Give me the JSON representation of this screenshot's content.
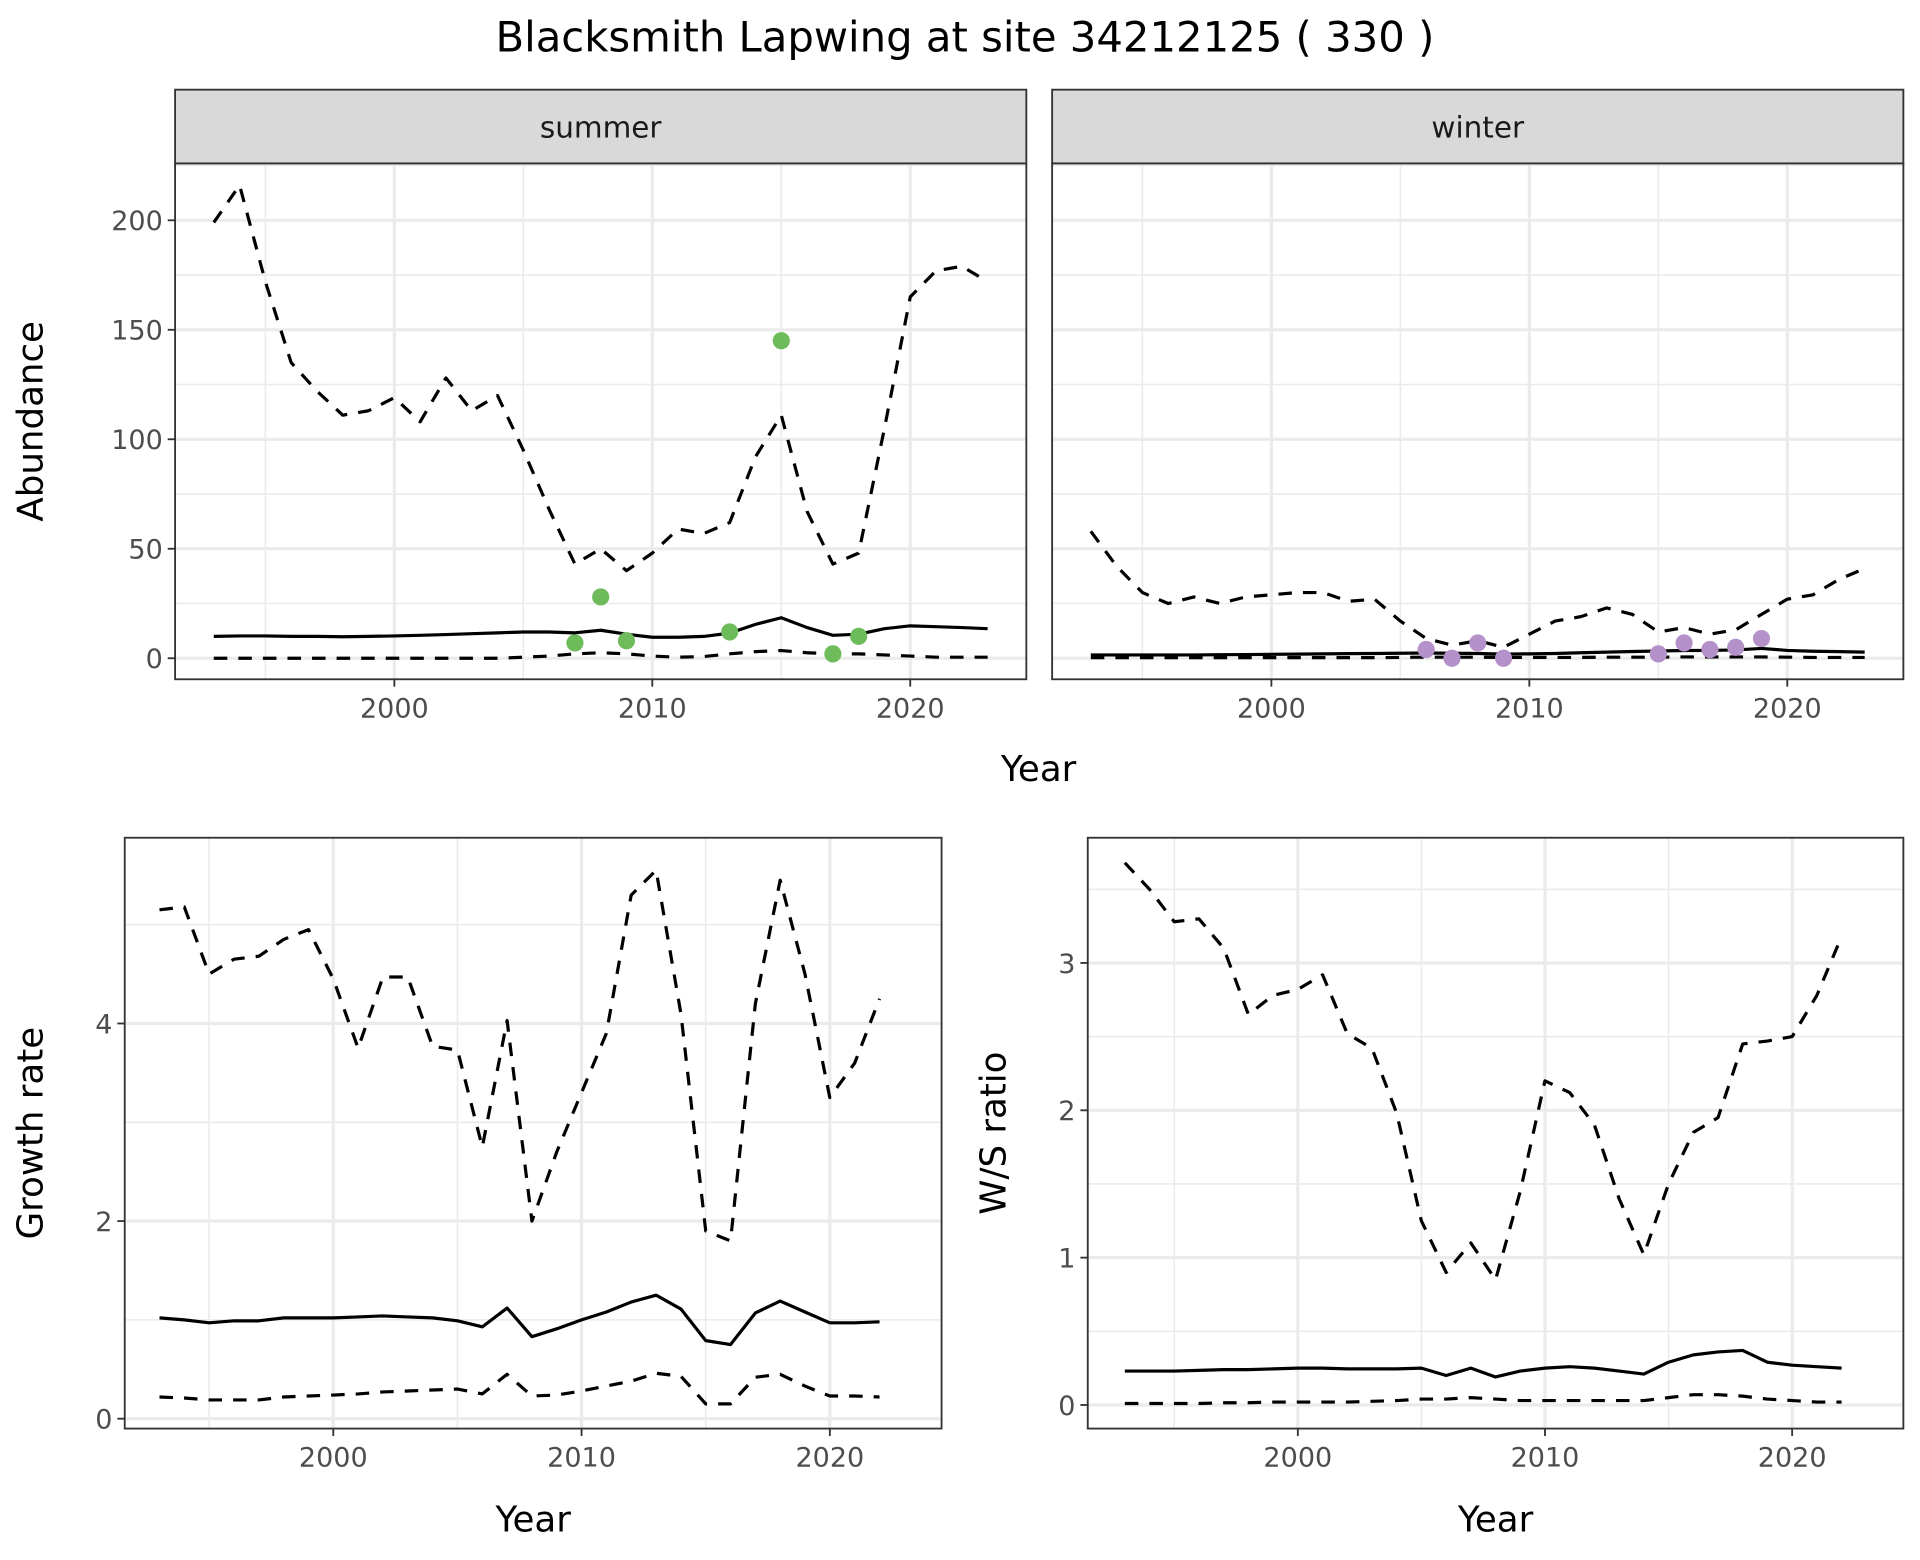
{
  "title": "Blacksmith Lapwing at site 34212125 ( 330 )",
  "colors": {
    "summer_points": "#6DBB5A",
    "winter_points": "#B491C8",
    "lines": "#000000",
    "strip_bg": "#D9D9D9",
    "grid": "#EBEBEB"
  },
  "chart_data": [
    {
      "type": "line",
      "facet": "summer",
      "xlabel": "Year",
      "ylabel": "Abundance",
      "xlim": [
        1991.5,
        2024.5
      ],
      "ylim": [
        -9.6,
        226
      ],
      "xticks": [
        2000,
        2010,
        2020
      ],
      "yticks": [
        0,
        50,
        100,
        150,
        200
      ],
      "grid": true,
      "x": [
        1993,
        1994,
        1995,
        1996,
        1997,
        1998,
        1999,
        2000,
        2001,
        2002,
        2003,
        2004,
        2005,
        2006,
        2007,
        2008,
        2009,
        2010,
        2011,
        2012,
        2013,
        2014,
        2015,
        2016,
        2017,
        2018,
        2019,
        2020,
        2021,
        2022,
        2023
      ],
      "series": [
        {
          "style": "dashed",
          "values": [
            199,
            216,
            172,
            135,
            122,
            111,
            113,
            119,
            108,
            128,
            113,
            120,
            95,
            68,
            43,
            50,
            40,
            48,
            59,
            57,
            62,
            92,
            111,
            67,
            43,
            48,
            105,
            165,
            177,
            179,
            172
          ]
        },
        {
          "style": "solid",
          "values": [
            10,
            10.2,
            10.2,
            10,
            10,
            9.8,
            10,
            10.2,
            10.5,
            10.8,
            11.2,
            11.6,
            12,
            12,
            11.6,
            12.8,
            11,
            9.6,
            9.6,
            10,
            11.5,
            15.5,
            18.5,
            14,
            10.5,
            11,
            13.5,
            14.8,
            14.4,
            14,
            13.5
          ]
        },
        {
          "style": "dashed",
          "values": [
            0,
            0,
            0,
            0,
            0,
            0,
            0,
            0,
            0,
            0,
            0,
            0,
            0.5,
            1,
            2,
            2.5,
            2,
            1,
            0.5,
            0.8,
            2,
            3,
            3.5,
            2.5,
            2,
            2,
            1.5,
            1,
            0.5,
            0.5,
            0.5
          ]
        }
      ],
      "points": {
        "x": [
          2007,
          2008,
          2009,
          2013,
          2015,
          2017,
          2018
        ],
        "y": [
          7,
          28,
          8,
          12,
          145,
          2,
          10
        ]
      }
    },
    {
      "type": "line",
      "facet": "winter",
      "xlabel": "Year",
      "ylabel": "Abundance",
      "xlim": [
        1991.5,
        2024.5
      ],
      "ylim": [
        -9.6,
        226
      ],
      "xticks": [
        2000,
        2010,
        2020
      ],
      "yticks": [
        0,
        50,
        100,
        150,
        200
      ],
      "grid": true,
      "x": [
        1993,
        1994,
        1995,
        1996,
        1997,
        1998,
        1999,
        2000,
        2001,
        2002,
        2003,
        2004,
        2005,
        2006,
        2007,
        2008,
        2009,
        2010,
        2011,
        2012,
        2013,
        2014,
        2015,
        2016,
        2017,
        2018,
        2019,
        2020,
        2021,
        2022,
        2023
      ],
      "series": [
        {
          "style": "dashed",
          "values": [
            58,
            42,
            30,
            25,
            28,
            25,
            28,
            29,
            30,
            30,
            26,
            27,
            17,
            9,
            6,
            8,
            5,
            11,
            17,
            19,
            23,
            20,
            12,
            14,
            11,
            13,
            20,
            27,
            29,
            36,
            41
          ]
        },
        {
          "style": "solid",
          "values": [
            1.5,
            1.5,
            1.5,
            1.5,
            1.5,
            1.6,
            1.7,
            1.8,
            1.9,
            2,
            2.1,
            2.2,
            2.3,
            2.4,
            2.3,
            2.2,
            1.9,
            2,
            2.2,
            2.5,
            2.8,
            3.1,
            3.3,
            3.5,
            3.6,
            3.8,
            4.5,
            3.6,
            3.2,
            3,
            2.8
          ]
        },
        {
          "style": "dashed",
          "values": [
            0.3,
            0.3,
            0.3,
            0.3,
            0.3,
            0.3,
            0.3,
            0.3,
            0.3,
            0.3,
            0.3,
            0.3,
            0.4,
            0.5,
            0.5,
            0.5,
            0.4,
            0.4,
            0.4,
            0.4,
            0.5,
            0.5,
            0.5,
            0.6,
            0.6,
            0.6,
            0.6,
            0.5,
            0.4,
            0.4,
            0.4
          ]
        }
      ],
      "points": {
        "x": [
          2006,
          2007,
          2008,
          2009,
          2015,
          2016,
          2017,
          2018,
          2019
        ],
        "y": [
          4,
          0,
          7,
          0,
          2,
          7,
          4,
          5,
          9
        ]
      }
    },
    {
      "type": "line",
      "xlabel": "Year",
      "ylabel": "Growth rate",
      "xlim": [
        1991.6,
        2024.5
      ],
      "ylim": [
        -0.1,
        5.88
      ],
      "xticks": [
        2000,
        2010,
        2020
      ],
      "yticks": [
        0,
        2,
        4
      ],
      "grid": true,
      "x": [
        1993,
        1994,
        1995,
        1996,
        1997,
        1998,
        1999,
        2000,
        2001,
        2002,
        2003,
        2004,
        2005,
        2006,
        2007,
        2008,
        2009,
        2010,
        2011,
        2012,
        2013,
        2014,
        2015,
        2016,
        2017,
        2018,
        2019,
        2020,
        2021,
        2022
      ],
      "series": [
        {
          "style": "dashed",
          "values": [
            5.15,
            5.18,
            4.5,
            4.65,
            4.68,
            4.85,
            4.95,
            4.45,
            3.75,
            4.47,
            4.47,
            3.77,
            3.73,
            2.75,
            4.03,
            2.0,
            2.7,
            3.3,
            3.9,
            5.3,
            5.55,
            4.1,
            1.9,
            1.8,
            4.2,
            5.45,
            4.5,
            3.25,
            3.6,
            4.25
          ]
        },
        {
          "style": "solid",
          "values": [
            1.02,
            1.0,
            0.97,
            0.99,
            0.99,
            1.02,
            1.02,
            1.02,
            1.03,
            1.04,
            1.03,
            1.02,
            0.99,
            0.93,
            1.12,
            0.83,
            0.91,
            1.0,
            1.08,
            1.18,
            1.25,
            1.11,
            0.79,
            0.75,
            1.07,
            1.19,
            1.08,
            0.97,
            0.97,
            0.98
          ]
        },
        {
          "style": "dashed",
          "values": [
            0.22,
            0.21,
            0.19,
            0.19,
            0.19,
            0.22,
            0.23,
            0.24,
            0.25,
            0.27,
            0.28,
            0.29,
            0.3,
            0.25,
            0.45,
            0.23,
            0.24,
            0.28,
            0.33,
            0.38,
            0.46,
            0.43,
            0.15,
            0.15,
            0.42,
            0.45,
            0.33,
            0.23,
            0.23,
            0.22
          ]
        }
      ]
    },
    {
      "type": "line",
      "xlabel": "Year",
      "ylabel": "W/S ratio",
      "xlim": [
        1991.5,
        2024.5
      ],
      "ylim": [
        -0.16,
        3.85
      ],
      "xticks": [
        2000,
        2010,
        2020
      ],
      "yticks": [
        0,
        1,
        2,
        3
      ],
      "grid": true,
      "x": [
        1993,
        1994,
        1995,
        1996,
        1997,
        1998,
        1999,
        2000,
        2001,
        2002,
        2003,
        2004,
        2005,
        2006,
        2007,
        2008,
        2009,
        2010,
        2011,
        2012,
        2013,
        2014,
        2015,
        2016,
        2017,
        2018,
        2019,
        2020,
        2021,
        2022
      ],
      "series": [
        {
          "style": "dashed",
          "values": [
            3.68,
            3.5,
            3.28,
            3.3,
            3.1,
            2.65,
            2.78,
            2.82,
            2.92,
            2.52,
            2.42,
            1.98,
            1.25,
            0.9,
            1.1,
            0.85,
            1.45,
            2.2,
            2.12,
            1.9,
            1.4,
            1.02,
            1.5,
            1.85,
            1.95,
            2.45,
            2.47,
            2.5,
            2.78,
            3.18
          ]
        },
        {
          "style": "solid",
          "values": [
            0.23,
            0.23,
            0.23,
            0.235,
            0.24,
            0.24,
            0.245,
            0.25,
            0.25,
            0.245,
            0.245,
            0.245,
            0.25,
            0.2,
            0.25,
            0.19,
            0.23,
            0.25,
            0.26,
            0.25,
            0.23,
            0.21,
            0.29,
            0.34,
            0.36,
            0.37,
            0.29,
            0.27,
            0.26,
            0.25
          ]
        },
        {
          "style": "dashed",
          "values": [
            0.01,
            0.01,
            0.01,
            0.01,
            0.015,
            0.015,
            0.02,
            0.02,
            0.02,
            0.02,
            0.025,
            0.03,
            0.04,
            0.04,
            0.05,
            0.04,
            0.03,
            0.03,
            0.03,
            0.03,
            0.03,
            0.03,
            0.05,
            0.07,
            0.07,
            0.06,
            0.04,
            0.03,
            0.02,
            0.02
          ]
        }
      ]
    }
  ]
}
